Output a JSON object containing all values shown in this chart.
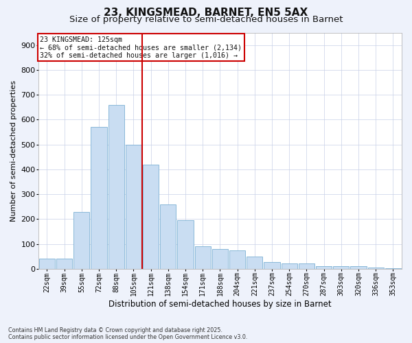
{
  "title": "23, KINGSMEAD, BARNET, EN5 5AX",
  "subtitle": "Size of property relative to semi-detached houses in Barnet",
  "xlabel": "Distribution of semi-detached houses by size in Barnet",
  "ylabel": "Number of semi-detached properties",
  "footer_line1": "Contains HM Land Registry data © Crown copyright and database right 2025.",
  "footer_line2": "Contains public sector information licensed under the Open Government Licence v3.0.",
  "categories": [
    "22sqm",
    "39sqm",
    "55sqm",
    "72sqm",
    "88sqm",
    "105sqm",
    "121sqm",
    "138sqm",
    "154sqm",
    "171sqm",
    "188sqm",
    "204sqm",
    "221sqm",
    "237sqm",
    "254sqm",
    "270sqm",
    "287sqm",
    "303sqm",
    "320sqm",
    "336sqm",
    "353sqm"
  ],
  "values": [
    42,
    42,
    230,
    570,
    660,
    500,
    420,
    260,
    195,
    90,
    80,
    75,
    50,
    28,
    22,
    22,
    12,
    10,
    10,
    5,
    3
  ],
  "bar_color": "#c9ddf2",
  "bar_edge_color": "#7aafd4",
  "vline_color": "#cc0000",
  "vline_pos": 5.5,
  "annotation_title": "23 KINGSMEAD: 125sqm",
  "annotation_line1": "← 68% of semi-detached houses are smaller (2,134)",
  "annotation_line2": "32% of semi-detached houses are larger (1,016) →",
  "annotation_box_color": "#cc0000",
  "ylim": [
    0,
    950
  ],
  "yticks": [
    0,
    100,
    200,
    300,
    400,
    500,
    600,
    700,
    800,
    900
  ],
  "background_color": "#eef2fb",
  "plot_bg_color": "#ffffff",
  "grid_color": "#c8d0e8",
  "title_fontsize": 11,
  "subtitle_fontsize": 9.5,
  "ylabel_fontsize": 8,
  "xlabel_fontsize": 8.5,
  "tick_fontsize": 7,
  "ytick_fontsize": 8
}
